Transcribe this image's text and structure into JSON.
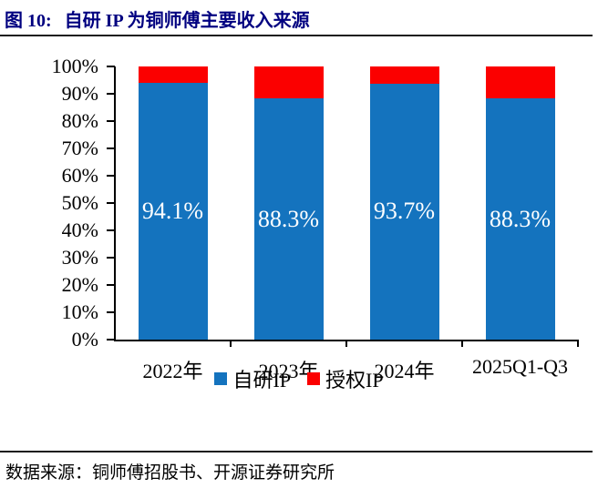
{
  "title": {
    "prefix": "图 10:",
    "text": "自研 IP 为铜师傅主要收入来源"
  },
  "source": {
    "label": "数据来源：铜师傅招股书、开源证券研究所"
  },
  "colors": {
    "self_ip_blue": "#1473BE",
    "licensed_ip_red": "#FB0000",
    "title_navy": "#000080",
    "axis_black": "#000000",
    "bar_label_white": "#ffffff"
  },
  "chart_data": {
    "type": "bar",
    "stacked": true,
    "percent_stacked": true,
    "title": "自研 IP 为铜师傅主要收入来源",
    "categories": [
      "2022年",
      "2023年",
      "2024年",
      "2025Q1-Q3"
    ],
    "series": [
      {
        "name": "自研IP",
        "color": "#1473BE",
        "values": [
          94.1,
          88.3,
          93.7,
          88.3
        ],
        "data_labels": [
          "94.1%",
          "88.3%",
          "93.7%",
          "88.3%"
        ]
      },
      {
        "name": "授权IP",
        "color": "#FB0000",
        "values": [
          5.9,
          11.7,
          6.3,
          11.7
        ],
        "data_labels": []
      }
    ],
    "ylim": [
      0,
      100
    ],
    "y_tick_labels": [
      "0%",
      "10%",
      "20%",
      "30%",
      "40%",
      "50%",
      "60%",
      "70%",
      "80%",
      "90%",
      "100%"
    ],
    "grid": false,
    "legend_position": "bottom"
  }
}
